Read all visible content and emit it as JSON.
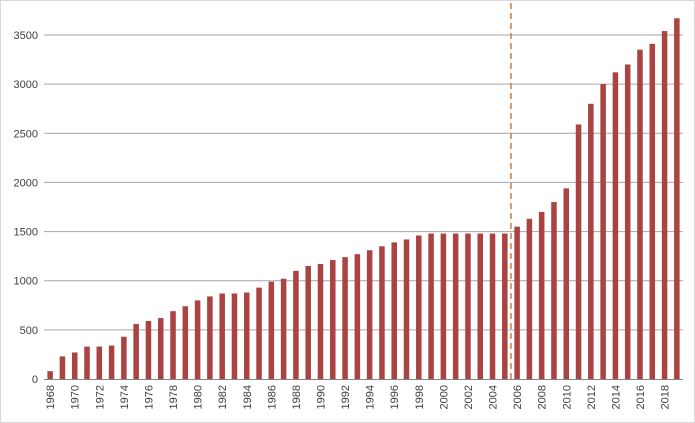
{
  "chart_data": {
    "type": "bar",
    "title": "",
    "xlabel": "",
    "ylabel": "",
    "ylim": [
      0,
      3500
    ],
    "y_ticks": [
      0,
      500,
      1000,
      1500,
      2000,
      2500,
      3000,
      3500
    ],
    "grid": true,
    "legend": "none",
    "bar_color": "#a94442",
    "reference_line": {
      "between": [
        "2005",
        "2006"
      ],
      "style": "dashed",
      "color": "#c0804a"
    },
    "categories": [
      "1968",
      "1969",
      "1970",
      "1971",
      "1972",
      "1973",
      "1974",
      "1975",
      "1976",
      "1977",
      "1978",
      "1979",
      "1980",
      "1981",
      "1982",
      "1983",
      "1984",
      "1985",
      "1986",
      "1987",
      "1988",
      "1989",
      "1990",
      "1991",
      "1992",
      "1993",
      "1994",
      "1995",
      "1996",
      "1997",
      "1998",
      "1999",
      "2000",
      "2001",
      "2002",
      "2003",
      "2004",
      "2005",
      "2006",
      "2007",
      "2008",
      "2009",
      "2010",
      "2011",
      "2012",
      "2013",
      "2014",
      "2015",
      "2016",
      "2017",
      "2018",
      "2019"
    ],
    "x_tick_labels": [
      "1968",
      "1970",
      "1972",
      "1974",
      "1976",
      "1978",
      "1980",
      "1982",
      "1984",
      "1986",
      "1988",
      "1990",
      "1992",
      "1994",
      "1996",
      "1998",
      "2000",
      "2002",
      "2004",
      "2006",
      "2008",
      "2010",
      "2012",
      "2014",
      "2016",
      "2018"
    ],
    "values": [
      80,
      230,
      270,
      330,
      330,
      340,
      430,
      560,
      590,
      620,
      690,
      740,
      800,
      840,
      870,
      870,
      880,
      930,
      990,
      1020,
      1100,
      1150,
      1170,
      1210,
      1240,
      1270,
      1310,
      1350,
      1390,
      1420,
      1460,
      1480,
      1480,
      1480,
      1480,
      1480,
      1480,
      1480,
      1550,
      1630,
      1700,
      1800,
      1940,
      2590,
      2800,
      3000,
      3120,
      3200,
      3350,
      3410,
      3540,
      3670
    ]
  }
}
